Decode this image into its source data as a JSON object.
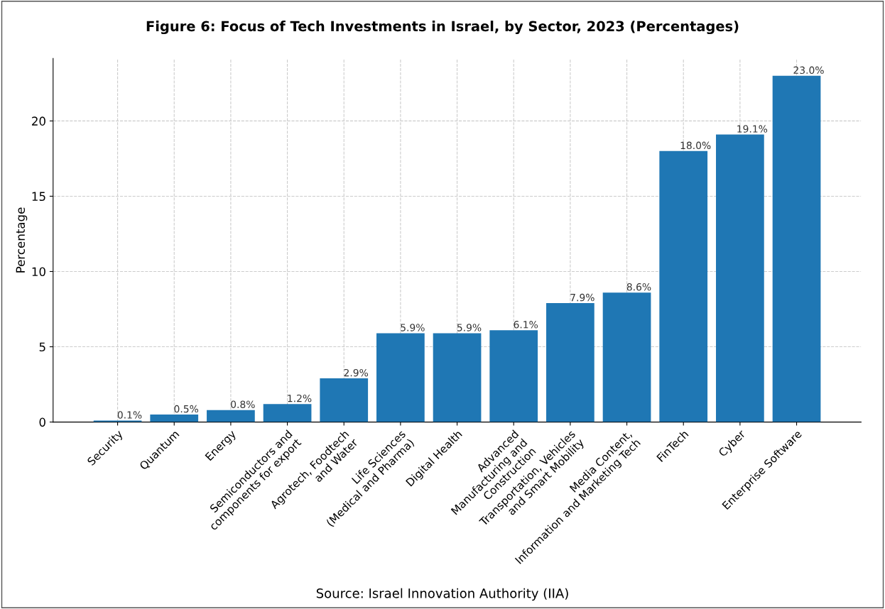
{
  "chart_data": {
    "type": "bar",
    "title": "Figure 6: Focus of Tech Investments in Israel, by Sector, 2023 (Percentages)",
    "ylabel": "Percentage",
    "categories": [
      "Security",
      "Quantum",
      "Energy",
      "Semiconductors and\ncomponents for export",
      "Agrotech, Foodtech\nand Water",
      "Life Sciences\n(Medical and Pharma)",
      "Digital Health",
      "Advanced\nManufacturing and\nConstruction",
      "Transportation, Vehicles\nand Smart Mobility",
      "Media Content,\nInformation and Marketing Tech",
      "FinTech",
      "Cyber",
      "Enterprise Software"
    ],
    "values": [
      0.1,
      0.5,
      0.8,
      1.2,
      2.9,
      5.9,
      5.9,
      6.1,
      7.9,
      8.6,
      18.0,
      19.1,
      23.0
    ],
    "value_labels": [
      "0.1%",
      "0.5%",
      "0.8%",
      "1.2%",
      "2.9%",
      "5.9%",
      "5.9%",
      "6.1%",
      "7.9%",
      "8.6%",
      "18.0%",
      "19.1%",
      "23.0%"
    ],
    "color": "#1f77b4",
    "ylim": [
      0,
      24.15
    ],
    "yticks": [
      0,
      5,
      10,
      15,
      20
    ],
    "grid": true,
    "annotations": [
      "Source: Israel Innovation Authority (IIA)"
    ]
  }
}
